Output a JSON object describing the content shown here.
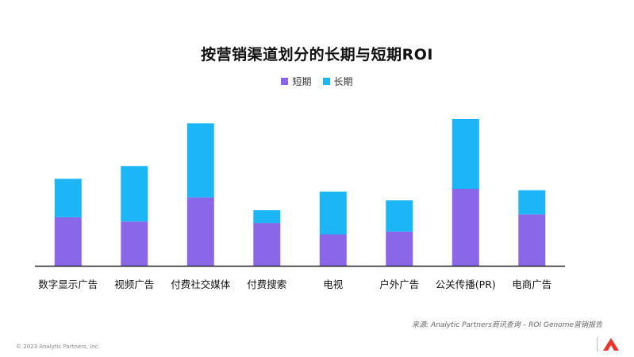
{
  "title": "按营销渠道划分的长期与短期ROI",
  "legend": {
    "short": "短期",
    "long": "长期"
  },
  "source": "来源: Analytic Partners商讯查询 – ROI Genome营销报告",
  "copyright": "© 2023 Analytic Partners, Inc.",
  "colors": {
    "short": "#8a67e8",
    "long": "#1cb5f5",
    "axis": "#222222"
  },
  "chart_data": {
    "type": "bar",
    "stacked": true,
    "categories": [
      "数字显示广告",
      "视频广告",
      "付费社交媒体",
      "付费搜索",
      "电视",
      "户外广告",
      "公关传播(PR)",
      "电商广告"
    ],
    "series": [
      {
        "name": "短期",
        "values": [
          34,
          31,
          48,
          30,
          22,
          24,
          54,
          36
        ]
      },
      {
        "name": "长期",
        "values": [
          27,
          39,
          52,
          9,
          30,
          22,
          49,
          17
        ]
      }
    ],
    "ylim": [
      0,
      103
    ],
    "y_axis_visible": false,
    "grid": false,
    "legend_position": "top-center"
  }
}
